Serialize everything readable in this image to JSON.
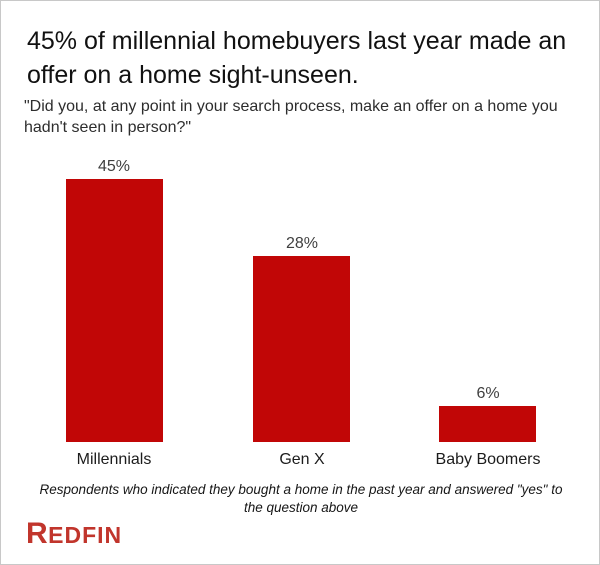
{
  "page": {
    "title": "45% of millennial homebuyers last year made an offer on a home sight-unseen.",
    "subtitle": "\"Did you, at any point in your search process, make an offer on a home you hadn't seen in person?\"",
    "footnote": "Respondents who indicated they bought a home in the past year and answered \"yes\" to the question above"
  },
  "chart_data": {
    "type": "bar",
    "title": "45% of millennial homebuyers last year made an offer on a home sight-unseen.",
    "subtitle_question": "\"Did you, at any point in your search process, make an offer on a home you hadn't seen in person?\"",
    "categories": [
      "Millennials",
      "Gen X",
      "Baby Boomers"
    ],
    "values": [
      45,
      28,
      6
    ],
    "value_labels": [
      "45%",
      "28%",
      "6%"
    ],
    "unit": "percent",
    "xlabel": "",
    "ylabel": "",
    "ylim": [
      0,
      50
    ],
    "grid": false,
    "legend": false,
    "axes_shown": false,
    "bar_color": "#c10606",
    "value_label_color": "#3f3f3f",
    "annotation": "Respondents who indicated they bought a home in the past year and answered \"yes\" to the question above"
  },
  "branding": {
    "logo_initial": "R",
    "logo_rest": "EDFIN",
    "logo_color": "#c1352c"
  }
}
